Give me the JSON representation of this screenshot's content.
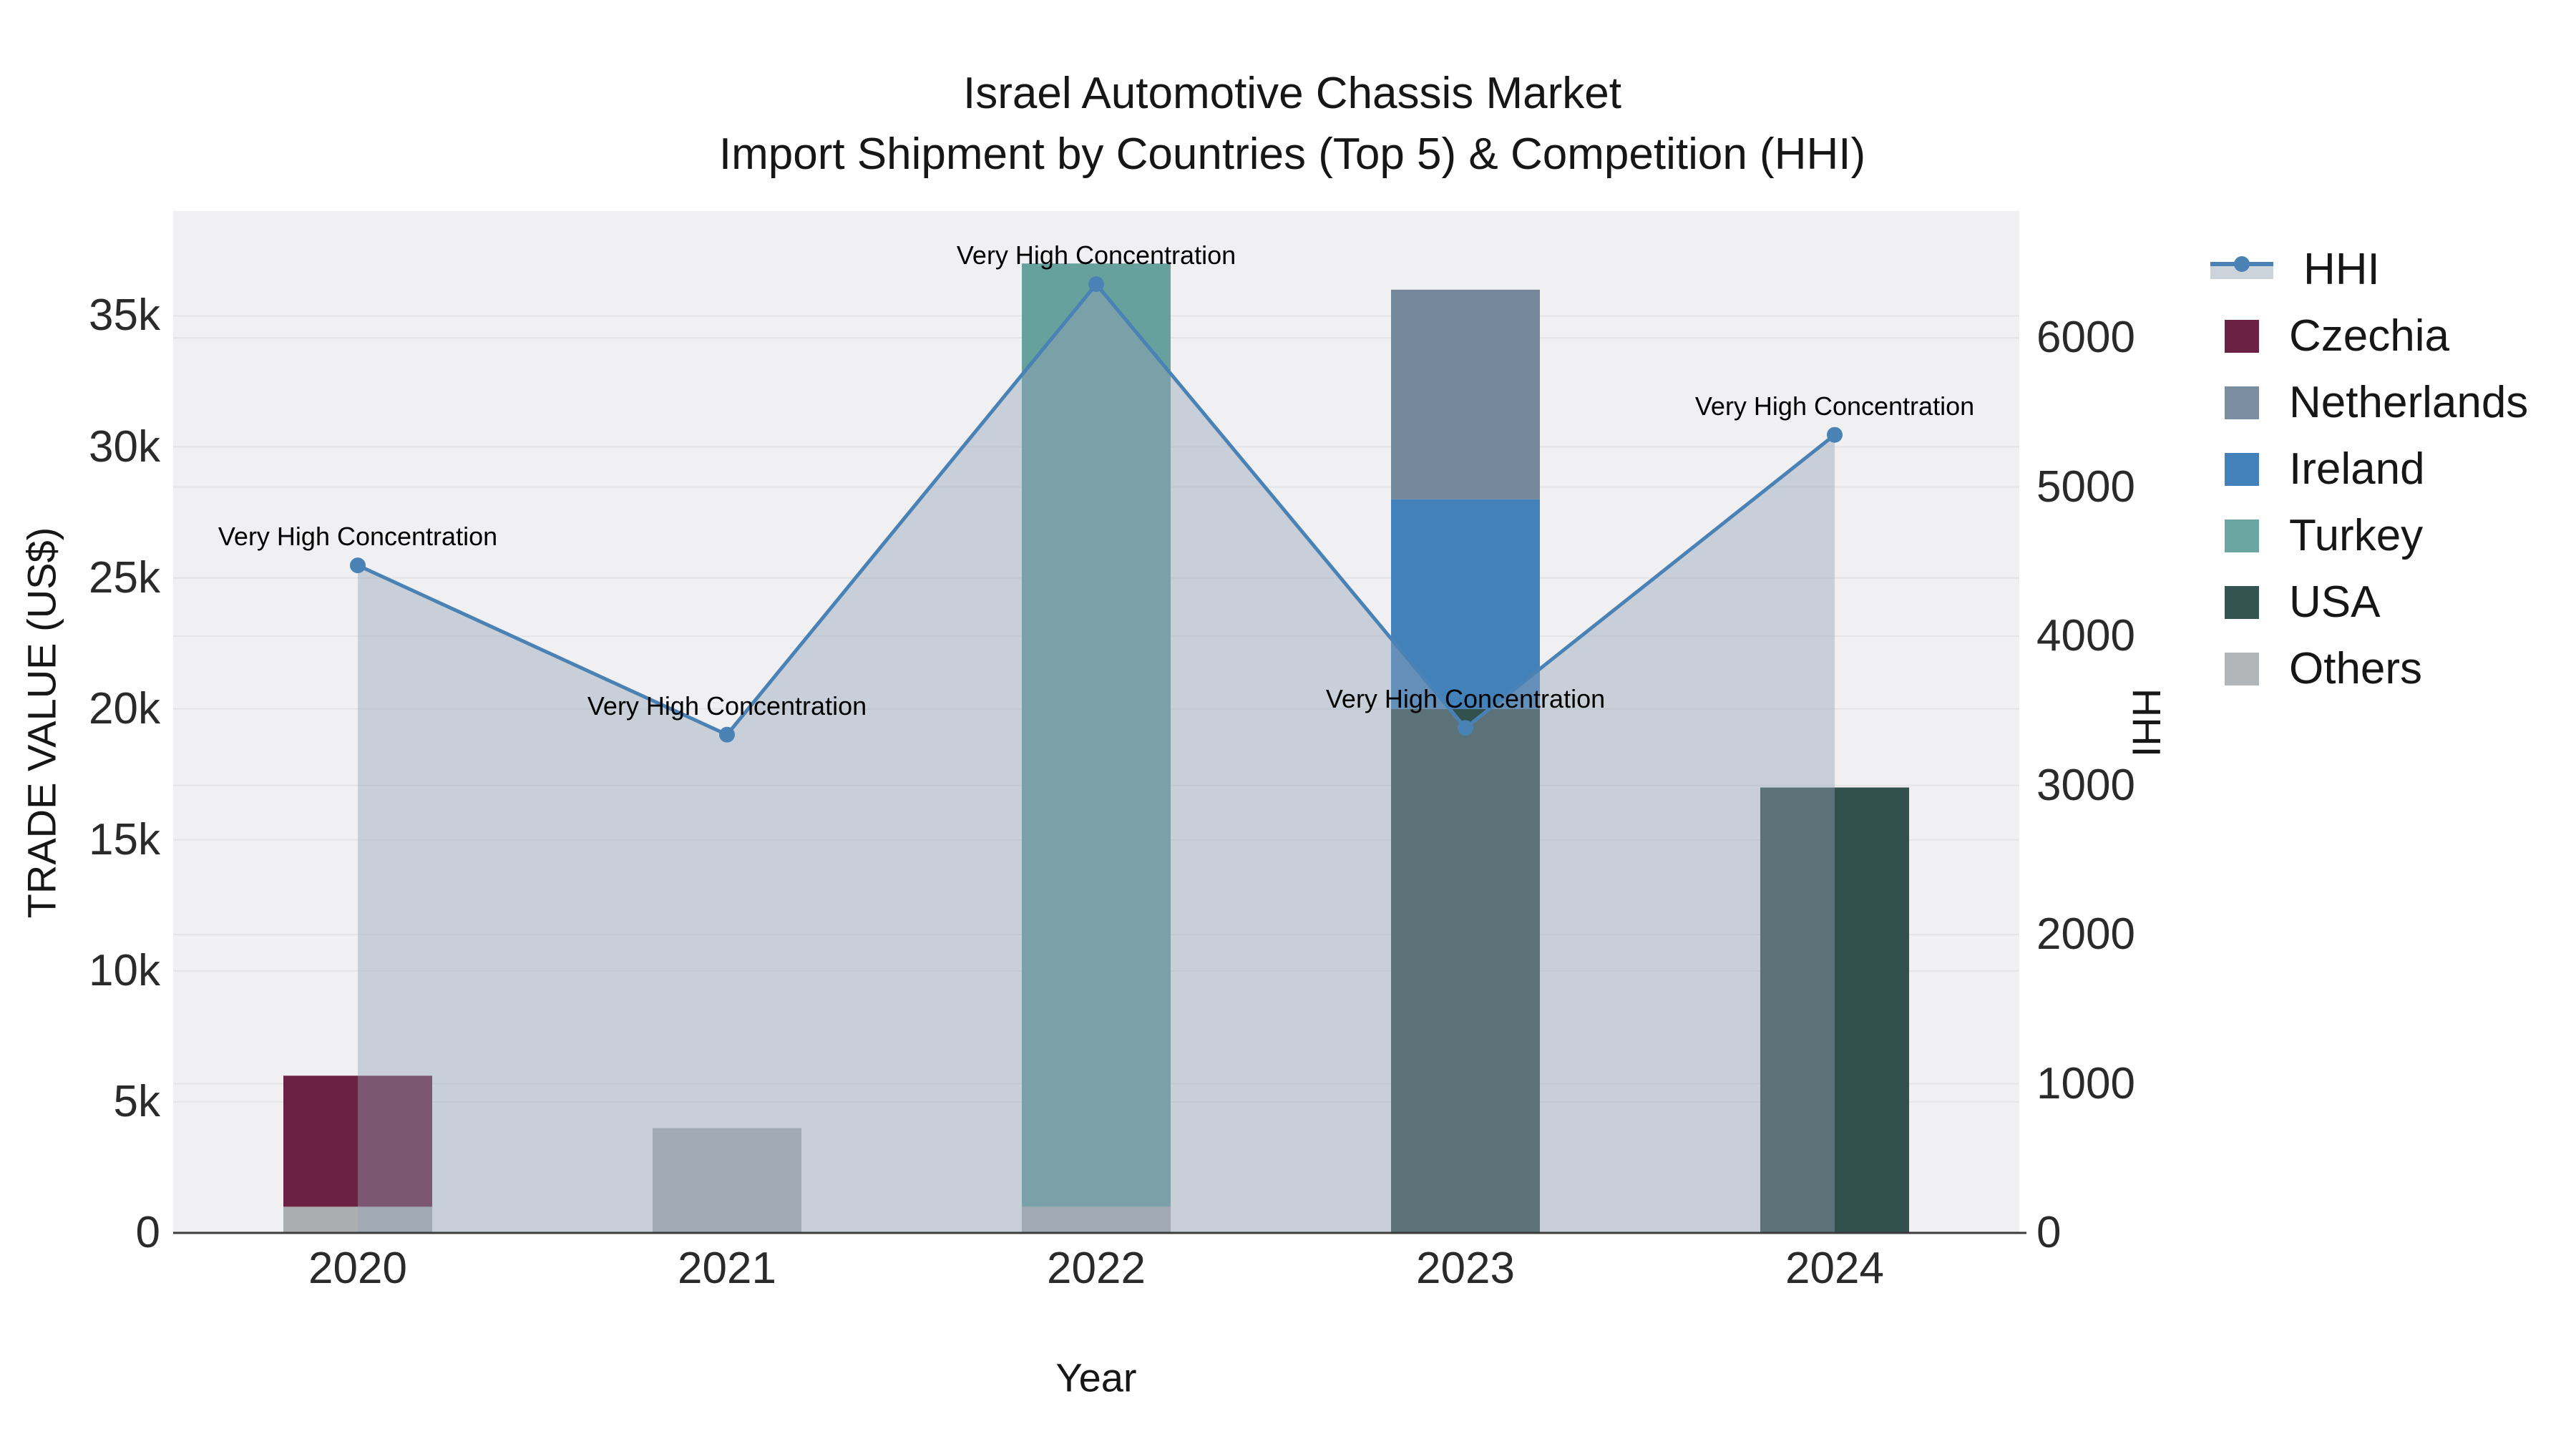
{
  "title": {
    "line1": "Israel Automotive Chassis Market",
    "line2": "Import Shipment by Countries (Top 5) & Competition (HHI)"
  },
  "axes": {
    "x": {
      "title": "Year",
      "ticks": [
        "2020",
        "2021",
        "2022",
        "2023",
        "2024"
      ]
    },
    "y_left": {
      "title": "TRADE VALUE (US$)",
      "ticks": [
        "0",
        "5k",
        "10k",
        "15k",
        "20k",
        "25k",
        "30k",
        "35k"
      ],
      "tick_values": [
        0,
        5000,
        10000,
        15000,
        20000,
        25000,
        30000,
        35000
      ],
      "max": 39000
    },
    "y_right": {
      "title": "HHI",
      "ticks": [
        "0",
        "1000",
        "2000",
        "3000",
        "4000",
        "5000",
        "6000"
      ],
      "tick_values": [
        0,
        1000,
        2000,
        3000,
        4000,
        5000,
        6000
      ],
      "max": 6850
    }
  },
  "legend": {
    "items": [
      {
        "label": "HHI",
        "kind": "line",
        "color": "#4a82b5",
        "band": "#ccd3da"
      },
      {
        "label": "Czechia",
        "kind": "swatch",
        "color": "#6b2143"
      },
      {
        "label": "Netherlands",
        "kind": "swatch",
        "color": "#7b8da0"
      },
      {
        "label": "Ireland",
        "kind": "swatch",
        "color": "#4381bb"
      },
      {
        "label": "Turkey",
        "kind": "swatch",
        "color": "#6ba5a1"
      },
      {
        "label": "USA",
        "kind": "swatch",
        "color": "#335450"
      },
      {
        "label": "Others",
        "kind": "swatch",
        "color": "#b3b6b8"
      }
    ]
  },
  "chart_data": {
    "type": "combo-stacked-bar-plus-line",
    "categories": [
      "2020",
      "2021",
      "2022",
      "2023",
      "2024"
    ],
    "stack_order_bottom_to_top": [
      "Others",
      "USA",
      "Turkey",
      "Ireland",
      "Netherlands",
      "Czechia"
    ],
    "bar_series": [
      {
        "name": "Czechia",
        "color": "#6b2143",
        "values": [
          5000,
          0,
          0,
          0,
          0
        ]
      },
      {
        "name": "Netherlands",
        "color": "#75889b",
        "values": [
          0,
          0,
          0,
          8000,
          0
        ]
      },
      {
        "name": "Ireland",
        "color": "#4381bb",
        "values": [
          0,
          0,
          0,
          8000,
          0
        ]
      },
      {
        "name": "Turkey",
        "color": "#67a19e",
        "values": [
          0,
          0,
          36000,
          0,
          0
        ]
      },
      {
        "name": "USA",
        "color": "#32504c",
        "values": [
          0,
          0,
          0,
          20000,
          17000
        ]
      },
      {
        "name": "Others",
        "color": "#abaeb1",
        "values": [
          1000,
          4000,
          1000,
          0,
          0
        ]
      }
    ],
    "bar_totals": [
      6000,
      4000,
      37000,
      36000,
      17000
    ],
    "line_series": {
      "name": "HHI",
      "color": "#4a82b5",
      "fill": "rgba(147,162,182,0.42)",
      "values": [
        4475,
        3340,
        6360,
        3385,
        5350
      ]
    },
    "point_annotations": [
      "Very High Concentration",
      "Very High Concentration",
      "Very High Concentration",
      "Very High Concentration",
      "Very High Concentration"
    ],
    "xlabel": "Year",
    "ylabel_left": "TRADE VALUE (US$)",
    "ylabel_right": "HHI",
    "ylim_left": [
      0,
      39000
    ],
    "ylim_right": [
      0,
      6850
    ],
    "grid": true,
    "legend_position": "right",
    "plot_background": "#f0f0f2",
    "gridline_color": "#e3e4e7",
    "axis_line_color": "#3c3c3c"
  }
}
